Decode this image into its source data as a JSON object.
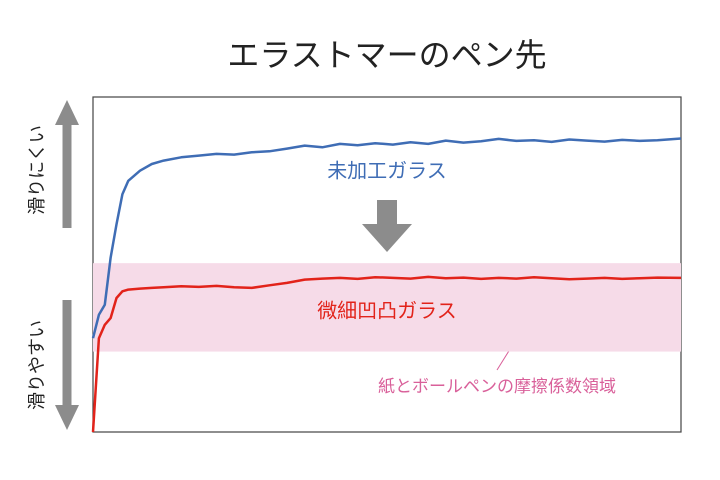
{
  "chart_data": {
    "type": "line",
    "title": "エラストマーのペン先",
    "x": [
      0,
      1,
      2,
      3,
      4,
      5,
      6,
      8,
      10,
      12,
      15,
      18,
      21,
      24,
      27,
      30,
      33,
      36,
      39,
      42,
      45,
      48,
      51,
      54,
      57,
      60,
      63,
      66,
      69,
      72,
      75,
      78,
      81,
      84,
      87,
      90,
      93,
      96,
      100
    ],
    "xlim": [
      0,
      100
    ],
    "ylim": [
      0,
      100
    ],
    "series": [
      {
        "name": "未加工ガラス",
        "color": "#3f6db5",
        "values": [
          28,
          35,
          38,
          52,
          62,
          71,
          75,
          78,
          80,
          81,
          82,
          82.5,
          83,
          82.8,
          83.5,
          83.8,
          84.6,
          85.5,
          85,
          86,
          85.6,
          86.2,
          85.8,
          86.5,
          86,
          87,
          86.4,
          86.8,
          87.5,
          86.9,
          87.1,
          86.6,
          87.3,
          87,
          86.7,
          87.2,
          86.9,
          87.1,
          87.6
        ]
      },
      {
        "name": "微細凹凸ガラス",
        "color": "#e2231a",
        "values": [
          0,
          28,
          32,
          34,
          40,
          42,
          42.5,
          42.8,
          43,
          43.2,
          43.5,
          43.3,
          43.6,
          43.2,
          43,
          43.8,
          44.5,
          45.5,
          45.8,
          46,
          45.7,
          46.2,
          46,
          45.8,
          46.3,
          45.9,
          46.1,
          45.7,
          46,
          45.8,
          46.2,
          45.9,
          45.6,
          45.8,
          46,
          45.7,
          45.9,
          46.1,
          46
        ]
      }
    ],
    "band": {
      "label": "紙とボールペンの摩擦係数領域",
      "range": [
        24,
        50.4
      ],
      "color": "#f6dbe8",
      "label_color": "#d9609a"
    },
    "axis_labels": {
      "up": "滑りにくい",
      "down": "滑りやすい"
    }
  }
}
